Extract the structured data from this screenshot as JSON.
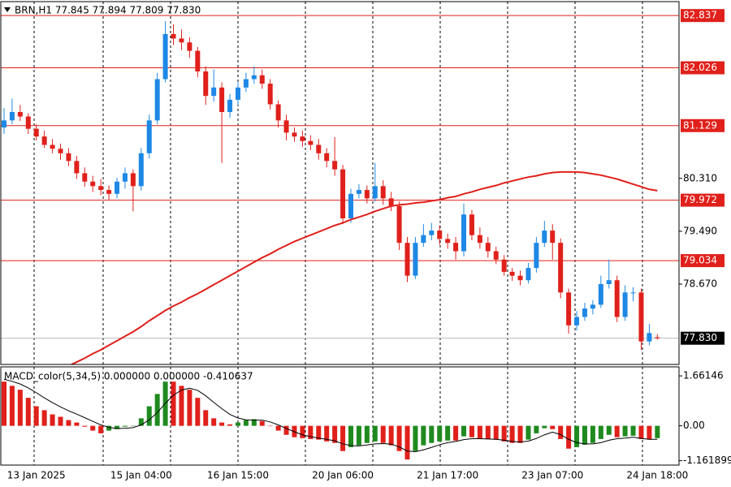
{
  "chart_data": {
    "type": "candlestick",
    "title": "BRN,H1  77.845 77.894 77.809 77.830",
    "up_color": "#1e88e5",
    "down_color": "#e0201b",
    "ylim": [
      77.423,
      83.053
    ],
    "yticks": [
      {
        "value": 80.31,
        "label": "80.310"
      },
      {
        "value": 79.49,
        "label": "79.490"
      },
      {
        "value": 78.67,
        "label": "78.670"
      }
    ],
    "levels": [
      82.837,
      82.026,
      81.129,
      79.972,
      79.034
    ],
    "level_color": "#e0201b",
    "current_price": {
      "value": 77.83,
      "label": "77.830"
    },
    "categories": [
      null,
      null,
      null,
      null,
      "13 Jan 2025",
      null,
      null,
      null,
      null,
      null,
      null,
      null,
      null,
      null,
      null,
      null,
      null,
      "15 Jan 04:00",
      null,
      null,
      null,
      null,
      null,
      null,
      null,
      null,
      null,
      null,
      null,
      "16 Jan 15:00",
      null,
      null,
      null,
      null,
      null,
      null,
      null,
      null,
      null,
      null,
      null,
      null,
      "20 Jan 06:00",
      null,
      null,
      null,
      null,
      null,
      null,
      null,
      null,
      null,
      null,
      null,
      null,
      "21 Jan 17:00",
      null,
      null,
      null,
      null,
      null,
      null,
      null,
      null,
      null,
      null,
      null,
      null,
      "23 Jan 07:00",
      null,
      null,
      null,
      null,
      null,
      null,
      null,
      null,
      null,
      null,
      null,
      null,
      "24 Jan 18:00"
    ],
    "candles": [
      [
        81.1,
        81.4,
        81.0,
        81.21
      ],
      [
        81.21,
        81.55,
        81.15,
        81.34
      ],
      [
        81.34,
        81.45,
        81.2,
        81.27
      ],
      [
        81.27,
        81.32,
        81.0,
        81.08
      ],
      [
        81.08,
        81.15,
        80.9,
        80.96
      ],
      [
        80.96,
        81.05,
        80.78,
        80.83
      ],
      [
        80.83,
        80.92,
        80.7,
        80.77
      ],
      [
        80.77,
        80.85,
        80.6,
        80.7
      ],
      [
        80.7,
        80.78,
        80.5,
        80.58
      ],
      [
        80.58,
        80.66,
        80.3,
        80.39
      ],
      [
        80.39,
        80.48,
        80.18,
        80.26
      ],
      [
        80.26,
        80.35,
        80.1,
        80.19
      ],
      [
        80.19,
        80.3,
        80.05,
        80.13
      ],
      [
        80.13,
        80.2,
        79.98,
        80.07
      ],
      [
        80.07,
        80.32,
        80.0,
        80.26
      ],
      [
        80.26,
        80.48,
        80.15,
        80.39
      ],
      [
        80.39,
        80.45,
        79.8,
        80.19
      ],
      [
        80.19,
        80.78,
        80.12,
        80.7
      ],
      [
        80.7,
        81.3,
        80.62,
        81.21
      ],
      [
        81.21,
        81.95,
        81.15,
        81.85
      ],
      [
        81.85,
        82.75,
        81.8,
        82.55
      ],
      [
        82.55,
        82.7,
        82.38,
        82.48
      ],
      [
        82.48,
        82.62,
        82.3,
        82.42
      ],
      [
        82.42,
        82.5,
        82.18,
        82.29
      ],
      [
        82.29,
        82.35,
        81.88,
        81.97
      ],
      [
        81.97,
        82.05,
        81.45,
        81.59
      ],
      [
        81.59,
        82.0,
        81.5,
        81.72
      ],
      [
        81.72,
        81.8,
        80.55,
        81.34
      ],
      [
        81.34,
        81.62,
        81.25,
        81.53
      ],
      [
        81.53,
        81.8,
        81.45,
        81.72
      ],
      [
        81.72,
        81.95,
        81.65,
        81.85
      ],
      [
        81.85,
        82.05,
        81.78,
        81.91
      ],
      [
        81.91,
        82.0,
        81.7,
        81.78
      ],
      [
        81.78,
        81.85,
        81.38,
        81.46
      ],
      [
        81.46,
        81.52,
        81.1,
        81.21
      ],
      [
        81.21,
        81.3,
        80.9,
        81.02
      ],
      [
        81.02,
        81.1,
        80.88,
        80.96
      ],
      [
        80.96,
        81.05,
        80.8,
        80.89
      ],
      [
        80.89,
        80.98,
        80.75,
        80.83
      ],
      [
        80.83,
        80.92,
        80.6,
        80.7
      ],
      [
        80.7,
        80.78,
        80.48,
        80.58
      ],
      [
        80.58,
        80.95,
        80.35,
        80.45
      ],
      [
        80.45,
        80.52,
        79.6,
        79.69
      ],
      [
        79.69,
        80.15,
        79.62,
        80.07
      ],
      [
        80.07,
        80.22,
        80.0,
        80.13
      ],
      [
        80.13,
        80.2,
        79.92,
        80.0
      ],
      [
        80.0,
        80.55,
        79.95,
        80.19
      ],
      [
        80.19,
        80.28,
        79.9,
        80.0
      ],
      [
        80.0,
        80.1,
        79.8,
        79.88
      ],
      [
        79.88,
        79.95,
        79.2,
        79.31
      ],
      [
        79.31,
        79.4,
        78.7,
        78.8
      ],
      [
        78.8,
        79.4,
        78.75,
        79.31
      ],
      [
        79.31,
        79.6,
        79.25,
        79.43
      ],
      [
        79.43,
        79.62,
        79.35,
        79.5
      ],
      [
        79.5,
        79.58,
        79.28,
        79.37
      ],
      [
        79.37,
        79.45,
        79.22,
        79.31
      ],
      [
        79.31,
        79.4,
        79.05,
        79.18
      ],
      [
        79.18,
        79.92,
        79.1,
        79.75
      ],
      [
        79.75,
        79.82,
        79.35,
        79.43
      ],
      [
        79.43,
        79.55,
        79.22,
        79.31
      ],
      [
        79.31,
        79.4,
        79.08,
        79.18
      ],
      [
        79.18,
        79.25,
        78.98,
        79.05
      ],
      [
        79.05,
        79.12,
        78.8,
        78.86
      ],
      [
        78.86,
        78.92,
        78.72,
        78.8
      ],
      [
        78.8,
        78.88,
        78.65,
        78.73
      ],
      [
        78.73,
        79.0,
        78.68,
        78.92
      ],
      [
        78.92,
        79.4,
        78.85,
        79.31
      ],
      [
        79.31,
        79.65,
        79.25,
        79.5
      ],
      [
        79.5,
        79.6,
        79.05,
        79.31
      ],
      [
        79.31,
        79.38,
        78.45,
        78.54
      ],
      [
        78.54,
        78.6,
        77.9,
        78.03
      ],
      [
        78.03,
        78.25,
        77.95,
        78.16
      ],
      [
        78.16,
        78.38,
        78.1,
        78.29
      ],
      [
        78.29,
        78.42,
        78.2,
        78.35
      ],
      [
        78.35,
        78.8,
        78.3,
        78.67
      ],
      [
        78.67,
        79.05,
        78.6,
        78.73
      ],
      [
        78.73,
        78.8,
        78.08,
        78.16
      ],
      [
        78.16,
        78.65,
        78.1,
        78.54
      ],
      [
        78.54,
        78.62,
        78.4,
        78.54
      ],
      [
        78.54,
        78.6,
        77.65,
        77.78
      ],
      [
        77.78,
        78.05,
        77.72,
        77.91
      ],
      [
        77.845,
        77.894,
        77.809,
        77.83
      ]
    ],
    "ma": {
      "color": "#e0201b",
      "values": [
        null,
        null,
        null,
        null,
        null,
        null,
        null,
        null,
        77.4,
        77.46,
        77.52,
        77.59,
        77.65,
        77.72,
        77.79,
        77.86,
        77.93,
        78.01,
        78.1,
        78.18,
        78.26,
        78.33,
        78.39,
        78.46,
        78.52,
        78.59,
        78.66,
        78.73,
        78.8,
        78.87,
        78.94,
        79.01,
        79.08,
        79.14,
        79.21,
        79.27,
        79.33,
        79.38,
        79.43,
        79.48,
        79.53,
        79.58,
        79.62,
        79.67,
        79.71,
        79.75,
        79.8,
        79.84,
        79.88,
        79.9,
        79.91,
        79.93,
        79.94,
        79.96,
        79.98,
        80.01,
        80.03,
        80.07,
        80.1,
        80.14,
        80.17,
        80.2,
        80.24,
        80.27,
        80.3,
        80.33,
        80.35,
        80.38,
        80.4,
        80.41,
        80.41,
        80.41,
        80.4,
        80.38,
        80.36,
        80.33,
        80.3,
        80.26,
        80.22,
        80.18,
        80.14,
        80.12
      ]
    },
    "macd": {
      "title": "MACD_color(5,34,5) 0.000000 0.000000 -0.410637",
      "up_color": "#1f8a1f",
      "down_color": "#e0201b",
      "signal_color": "#000000",
      "ylim": [
        -1.307,
        1.961
      ],
      "yticks": [
        1.66146,
        {
          "value": 0,
          "label": "0.00"
        },
        -1.161899
      ],
      "values": [
        1.47,
        1.33,
        1.2,
        0.93,
        0.65,
        0.52,
        0.38,
        0.3,
        0.19,
        0.11,
        -0.03,
        -0.16,
        -0.25,
        -0.16,
        -0.11,
        -0.03,
        0.0,
        0.25,
        0.65,
        1.06,
        1.47,
        1.47,
        1.33,
        1.2,
        0.93,
        0.52,
        0.25,
        0.11,
        0.05,
        0.11,
        0.19,
        0.22,
        0.16,
        0.0,
        -0.16,
        -0.3,
        -0.38,
        -0.41,
        -0.44,
        -0.46,
        -0.52,
        -0.57,
        -0.84,
        -0.71,
        -0.65,
        -0.57,
        -0.52,
        -0.57,
        -0.65,
        -0.84,
        -1.12,
        -0.84,
        -0.65,
        -0.57,
        -0.52,
        -0.49,
        -0.49,
        -0.35,
        -0.38,
        -0.44,
        -0.44,
        -0.46,
        -0.52,
        -0.57,
        -0.57,
        -0.46,
        -0.25,
        -0.08,
        -0.11,
        -0.44,
        -0.76,
        -0.71,
        -0.63,
        -0.57,
        -0.44,
        -0.3,
        -0.38,
        -0.35,
        -0.33,
        -0.44,
        -0.46,
        -0.41
      ],
      "signal": [
        1.55,
        1.48,
        1.39,
        1.26,
        1.1,
        0.93,
        0.77,
        0.63,
        0.5,
        0.39,
        0.27,
        0.15,
        0.03,
        -0.05,
        -0.09,
        -0.08,
        -0.06,
        0.03,
        0.2,
        0.44,
        0.75,
        1.02,
        1.19,
        1.25,
        1.18,
        1.0,
        0.78,
        0.57,
        0.38,
        0.26,
        0.2,
        0.19,
        0.19,
        0.13,
        0.03,
        -0.09,
        -0.2,
        -0.3,
        -0.36,
        -0.41,
        -0.45,
        -0.5,
        -0.6,
        -0.66,
        -0.67,
        -0.64,
        -0.6,
        -0.59,
        -0.61,
        -0.7,
        -0.84,
        -0.86,
        -0.8,
        -0.72,
        -0.63,
        -0.56,
        -0.52,
        -0.46,
        -0.43,
        -0.43,
        -0.44,
        -0.45,
        -0.48,
        -0.52,
        -0.54,
        -0.51,
        -0.42,
        -0.3,
        -0.21,
        -0.29,
        -0.45,
        -0.56,
        -0.6,
        -0.6,
        -0.56,
        -0.48,
        -0.43,
        -0.41,
        -0.38,
        -0.42,
        -0.45,
        -0.45
      ]
    }
  }
}
